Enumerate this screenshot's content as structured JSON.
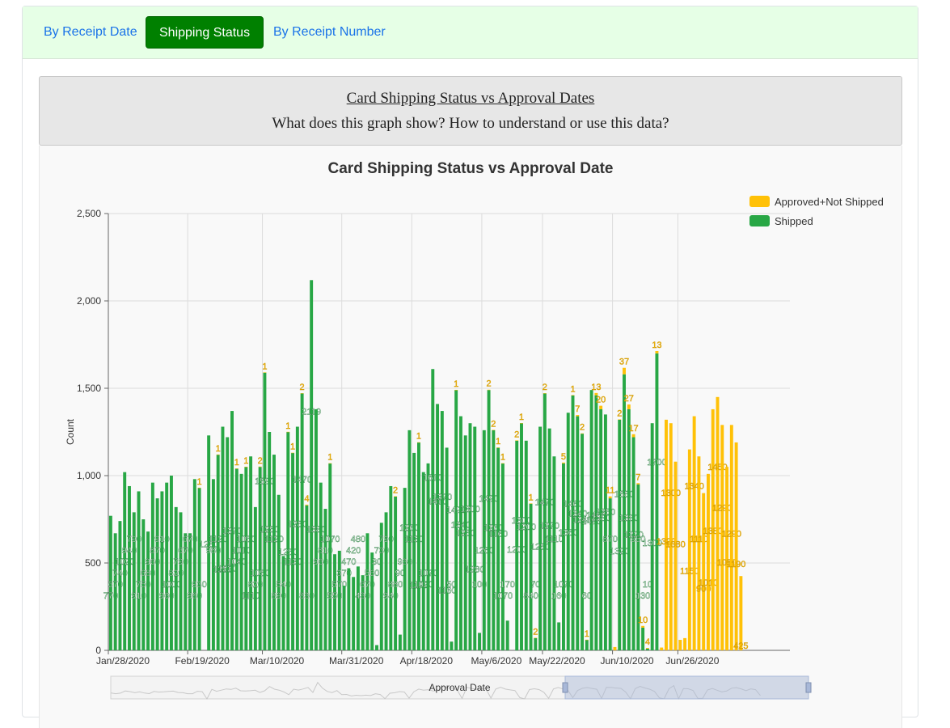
{
  "tabs": [
    {
      "label": "By Receipt Date",
      "active": false
    },
    {
      "label": "Shipping Status",
      "active": true
    },
    {
      "label": "By Receipt Number",
      "active": false
    }
  ],
  "info": {
    "title": "Card Shipping Status vs Approval Dates",
    "question": "What does this graph show? How to understand or use this data?"
  },
  "colors": {
    "shipped": "#28a745",
    "not_shipped": "#ffc107",
    "tab_active": "#008000",
    "tab_bar": "#e6ffe6"
  },
  "chart_data": {
    "type": "bar",
    "title": "Card Shipping Status vs Approval Date",
    "xlabel": "Approval Date",
    "ylabel": "Count",
    "ylim": [
      0,
      2500
    ],
    "yticks": [
      0,
      500,
      1000,
      1500,
      2000,
      2500
    ],
    "ytick_labels": [
      "0",
      "500",
      "1,000",
      "1,500",
      "2,000",
      "2,500"
    ],
    "xtick_labels": [
      "Jan/28/2020",
      "Feb/19/2020",
      "Mar/10/2020",
      "Mar/31/2020",
      "Apr/18/2020",
      "May/6/2020",
      "May/22/2020",
      "Jun/10/2020",
      "Jun/26/2020"
    ],
    "grid": true,
    "stacked": true,
    "legend_position": "top-right",
    "zoom_slider_label": "Approval Date",
    "series": [
      {
        "name": "Shipped",
        "color": "#28a745",
        "values": [
          770,
          670,
          740,
          1020,
          940,
          790,
          910,
          750,
          680,
          960,
          870,
          910,
          960,
          1000,
          820,
          790,
          670,
          670,
          980,
          930,
          0,
          1230,
          980,
          1120,
          1280,
          1220,
          1370,
          1040,
          1010,
          1050,
          1110,
          820,
          1050,
          1590,
          1250,
          1120,
          890,
          540,
          1250,
          1130,
          1280,
          1470,
          830,
          2119,
          1380,
          960,
          810,
          1070,
          550,
          570,
          370,
          470,
          420,
          480,
          430,
          670,
          560,
          30,
          730,
          790,
          940,
          880,
          90,
          930,
          1260,
          1130,
          1190,
          1020,
          1070,
          1610,
          1410,
          1370,
          1160,
          50,
          1490,
          1340,
          1230,
          1300,
          1280,
          100,
          1260,
          1490,
          1260,
          1160,
          1070,
          170,
          0,
          1200,
          1300,
          1200,
          840,
          70,
          1280,
          1470,
          1270,
          1110,
          160,
          1070,
          1360,
          1460,
          1340,
          1240,
          60,
          1490,
          1460,
          1380,
          1350,
          870,
          0,
          1320,
          1580,
          1380,
          1220,
          950,
          130,
          10,
          1300,
          1700,
          0,
          0,
          0,
          0,
          0,
          0,
          0,
          0,
          0,
          0,
          0,
          0,
          0,
          0,
          0,
          0,
          0,
          0,
          0,
          0,
          0,
          0,
          0,
          0,
          0,
          0,
          0,
          0
        ]
      },
      {
        "name": "Approved+Not Shipped",
        "color": "#ffc107",
        "values": [
          0,
          0,
          0,
          0,
          0,
          0,
          0,
          0,
          0,
          0,
          0,
          0,
          0,
          0,
          0,
          0,
          0,
          0,
          0,
          1,
          0,
          0,
          0,
          1,
          0,
          0,
          0,
          1,
          0,
          1,
          0,
          0,
          2,
          1,
          0,
          0,
          0,
          0,
          1,
          1,
          0,
          2,
          4,
          0,
          0,
          0,
          0,
          1,
          0,
          0,
          0,
          0,
          0,
          0,
          0,
          0,
          0,
          0,
          0,
          0,
          0,
          2,
          0,
          0,
          0,
          0,
          1,
          0,
          0,
          0,
          0,
          0,
          0,
          0,
          1,
          0,
          0,
          0,
          0,
          0,
          0,
          2,
          2,
          1,
          1,
          0,
          0,
          2,
          1,
          0,
          1,
          2,
          0,
          2,
          0,
          0,
          0,
          5,
          0,
          1,
          7,
          2,
          1,
          0,
          13,
          20,
          0,
          11,
          19,
          2,
          37,
          27,
          17,
          7,
          10,
          4,
          0,
          13,
          16,
          1320,
          1300,
          1080,
          60,
          70,
          1150,
          1340,
          1110,
          900,
          1010,
          1380,
          1450,
          1290,
          1050,
          1290,
          1190,
          425
        ]
      }
    ]
  }
}
